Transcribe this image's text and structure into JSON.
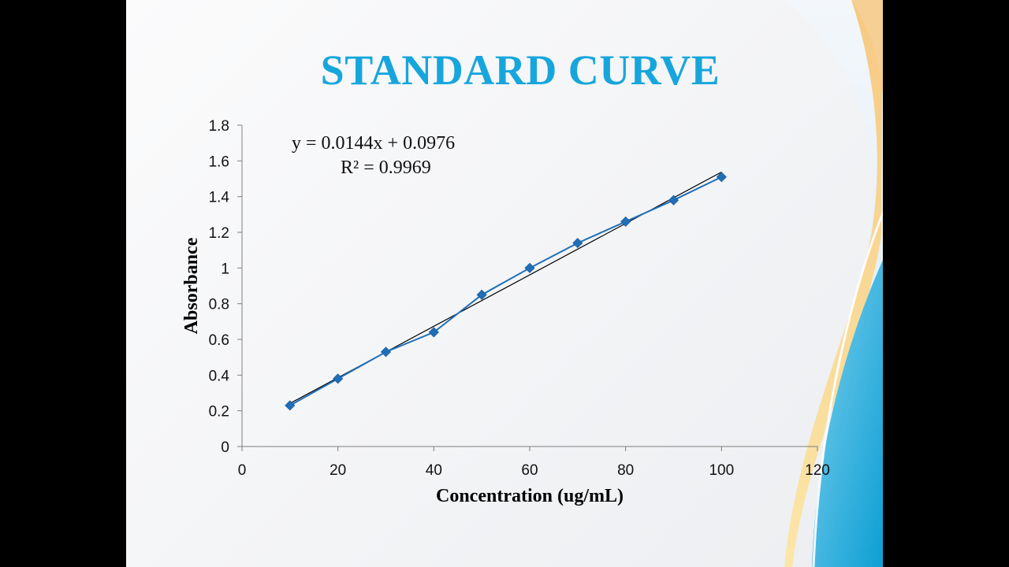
{
  "slide": {
    "title": "STANDARD CURVE"
  },
  "colors": {
    "title": "#17a6dc",
    "series": "#1f6fb8",
    "trendline": "#000000",
    "wave_blue": "#1aa3d6",
    "wave_gold": "#f5cc7a"
  },
  "chart_data": {
    "type": "line",
    "xlabel": "Concentration (ug/mL)",
    "ylabel": "Absorbance",
    "xlim": [
      0,
      120
    ],
    "ylim": [
      0,
      1.8
    ],
    "x_ticks": [
      "0",
      "20",
      "40",
      "60",
      "80",
      "100",
      "120"
    ],
    "y_ticks": [
      "0",
      "0.2",
      "0.4",
      "0.6",
      "0.8",
      "1",
      "1.2",
      "1.4",
      "1.6",
      "1.8"
    ],
    "grid": false,
    "legend": "none",
    "series": [
      {
        "x": [
          10,
          20,
          30,
          40,
          50,
          60,
          70,
          80,
          90,
          100
        ],
        "values": [
          0.23,
          0.38,
          0.53,
          0.64,
          0.85,
          1.0,
          1.14,
          1.26,
          1.38,
          1.51
        ],
        "marker": "diamond"
      }
    ],
    "trendline": {
      "type": "linear",
      "slope": 0.0144,
      "intercept": 0.0976,
      "equation_label": "y = 0.0144x + 0.0976",
      "r2_label": "R² = 0.9969"
    }
  }
}
